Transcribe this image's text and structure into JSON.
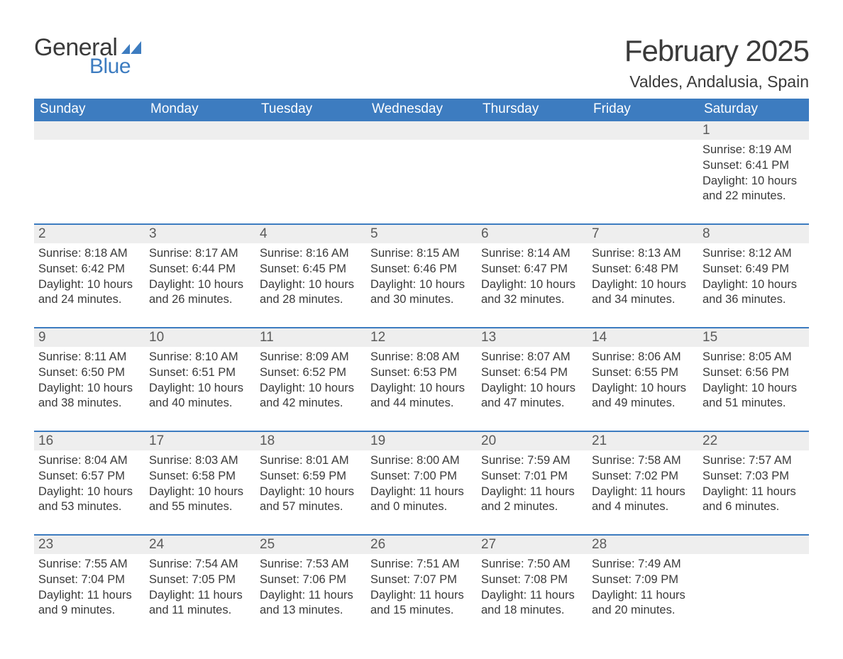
{
  "logo": {
    "general": "General",
    "blue": "Blue"
  },
  "header": {
    "month_title": "February 2025",
    "location": "Valdes, Andalusia, Spain"
  },
  "colors": {
    "header_bg": "#3d7cc0",
    "header_text": "#ffffff",
    "strip_bg": "#eeeeee",
    "divider": "#3d7cc0",
    "text": "#3a3a3a",
    "logo_blue": "#3d7cc0"
  },
  "days_of_week": [
    "Sunday",
    "Monday",
    "Tuesday",
    "Wednesday",
    "Thursday",
    "Friday",
    "Saturday"
  ],
  "weeks": [
    {
      "nums": [
        "",
        "",
        "",
        "",
        "",
        "",
        "1"
      ],
      "cells": [
        null,
        null,
        null,
        null,
        null,
        null,
        {
          "sunrise": "Sunrise: 8:19 AM",
          "sunset": "Sunset: 6:41 PM",
          "day1": "Daylight: 10 hours",
          "day2": "and 22 minutes."
        }
      ]
    },
    {
      "nums": [
        "2",
        "3",
        "4",
        "5",
        "6",
        "7",
        "8"
      ],
      "cells": [
        {
          "sunrise": "Sunrise: 8:18 AM",
          "sunset": "Sunset: 6:42 PM",
          "day1": "Daylight: 10 hours",
          "day2": "and 24 minutes."
        },
        {
          "sunrise": "Sunrise: 8:17 AM",
          "sunset": "Sunset: 6:44 PM",
          "day1": "Daylight: 10 hours",
          "day2": "and 26 minutes."
        },
        {
          "sunrise": "Sunrise: 8:16 AM",
          "sunset": "Sunset: 6:45 PM",
          "day1": "Daylight: 10 hours",
          "day2": "and 28 minutes."
        },
        {
          "sunrise": "Sunrise: 8:15 AM",
          "sunset": "Sunset: 6:46 PM",
          "day1": "Daylight: 10 hours",
          "day2": "and 30 minutes."
        },
        {
          "sunrise": "Sunrise: 8:14 AM",
          "sunset": "Sunset: 6:47 PM",
          "day1": "Daylight: 10 hours",
          "day2": "and 32 minutes."
        },
        {
          "sunrise": "Sunrise: 8:13 AM",
          "sunset": "Sunset: 6:48 PM",
          "day1": "Daylight: 10 hours",
          "day2": "and 34 minutes."
        },
        {
          "sunrise": "Sunrise: 8:12 AM",
          "sunset": "Sunset: 6:49 PM",
          "day1": "Daylight: 10 hours",
          "day2": "and 36 minutes."
        }
      ]
    },
    {
      "nums": [
        "9",
        "10",
        "11",
        "12",
        "13",
        "14",
        "15"
      ],
      "cells": [
        {
          "sunrise": "Sunrise: 8:11 AM",
          "sunset": "Sunset: 6:50 PM",
          "day1": "Daylight: 10 hours",
          "day2": "and 38 minutes."
        },
        {
          "sunrise": "Sunrise: 8:10 AM",
          "sunset": "Sunset: 6:51 PM",
          "day1": "Daylight: 10 hours",
          "day2": "and 40 minutes."
        },
        {
          "sunrise": "Sunrise: 8:09 AM",
          "sunset": "Sunset: 6:52 PM",
          "day1": "Daylight: 10 hours",
          "day2": "and 42 minutes."
        },
        {
          "sunrise": "Sunrise: 8:08 AM",
          "sunset": "Sunset: 6:53 PM",
          "day1": "Daylight: 10 hours",
          "day2": "and 44 minutes."
        },
        {
          "sunrise": "Sunrise: 8:07 AM",
          "sunset": "Sunset: 6:54 PM",
          "day1": "Daylight: 10 hours",
          "day2": "and 47 minutes."
        },
        {
          "sunrise": "Sunrise: 8:06 AM",
          "sunset": "Sunset: 6:55 PM",
          "day1": "Daylight: 10 hours",
          "day2": "and 49 minutes."
        },
        {
          "sunrise": "Sunrise: 8:05 AM",
          "sunset": "Sunset: 6:56 PM",
          "day1": "Daylight: 10 hours",
          "day2": "and 51 minutes."
        }
      ]
    },
    {
      "nums": [
        "16",
        "17",
        "18",
        "19",
        "20",
        "21",
        "22"
      ],
      "cells": [
        {
          "sunrise": "Sunrise: 8:04 AM",
          "sunset": "Sunset: 6:57 PM",
          "day1": "Daylight: 10 hours",
          "day2": "and 53 minutes."
        },
        {
          "sunrise": "Sunrise: 8:03 AM",
          "sunset": "Sunset: 6:58 PM",
          "day1": "Daylight: 10 hours",
          "day2": "and 55 minutes."
        },
        {
          "sunrise": "Sunrise: 8:01 AM",
          "sunset": "Sunset: 6:59 PM",
          "day1": "Daylight: 10 hours",
          "day2": "and 57 minutes."
        },
        {
          "sunrise": "Sunrise: 8:00 AM",
          "sunset": "Sunset: 7:00 PM",
          "day1": "Daylight: 11 hours",
          "day2": "and 0 minutes."
        },
        {
          "sunrise": "Sunrise: 7:59 AM",
          "sunset": "Sunset: 7:01 PM",
          "day1": "Daylight: 11 hours",
          "day2": "and 2 minutes."
        },
        {
          "sunrise": "Sunrise: 7:58 AM",
          "sunset": "Sunset: 7:02 PM",
          "day1": "Daylight: 11 hours",
          "day2": "and 4 minutes."
        },
        {
          "sunrise": "Sunrise: 7:57 AM",
          "sunset": "Sunset: 7:03 PM",
          "day1": "Daylight: 11 hours",
          "day2": "and 6 minutes."
        }
      ]
    },
    {
      "nums": [
        "23",
        "24",
        "25",
        "26",
        "27",
        "28",
        ""
      ],
      "cells": [
        {
          "sunrise": "Sunrise: 7:55 AM",
          "sunset": "Sunset: 7:04 PM",
          "day1": "Daylight: 11 hours",
          "day2": "and 9 minutes."
        },
        {
          "sunrise": "Sunrise: 7:54 AM",
          "sunset": "Sunset: 7:05 PM",
          "day1": "Daylight: 11 hours",
          "day2": "and 11 minutes."
        },
        {
          "sunrise": "Sunrise: 7:53 AM",
          "sunset": "Sunset: 7:06 PM",
          "day1": "Daylight: 11 hours",
          "day2": "and 13 minutes."
        },
        {
          "sunrise": "Sunrise: 7:51 AM",
          "sunset": "Sunset: 7:07 PM",
          "day1": "Daylight: 11 hours",
          "day2": "and 15 minutes."
        },
        {
          "sunrise": "Sunrise: 7:50 AM",
          "sunset": "Sunset: 7:08 PM",
          "day1": "Daylight: 11 hours",
          "day2": "and 18 minutes."
        },
        {
          "sunrise": "Sunrise: 7:49 AM",
          "sunset": "Sunset: 7:09 PM",
          "day1": "Daylight: 11 hours",
          "day2": "and 20 minutes."
        },
        null
      ]
    }
  ]
}
